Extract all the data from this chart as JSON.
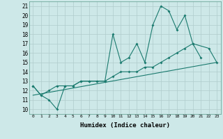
{
  "xlabel": "Humidex (Indice chaleur)",
  "bg_color": "#cde8e8",
  "line_color": "#1a7a6e",
  "grid_color": "#b0cccc",
  "xlim": [
    -0.5,
    23.5
  ],
  "ylim": [
    9.5,
    21.5
  ],
  "xticks": [
    0,
    1,
    2,
    3,
    4,
    5,
    6,
    7,
    8,
    9,
    10,
    11,
    12,
    13,
    14,
    15,
    16,
    17,
    18,
    19,
    20,
    21,
    22,
    23
  ],
  "yticks": [
    10,
    11,
    12,
    13,
    14,
    15,
    16,
    17,
    18,
    19,
    20,
    21
  ],
  "series1_x": [
    0,
    1,
    2,
    3,
    4,
    5,
    6,
    7,
    8,
    9,
    10,
    11,
    12,
    13,
    14,
    15,
    16,
    17,
    18,
    19,
    20,
    21
  ],
  "series1_y": [
    12.5,
    11.5,
    11.0,
    10.0,
    12.5,
    12.5,
    13.0,
    13.0,
    13.0,
    13.0,
    18.0,
    15.0,
    15.5,
    17.0,
    15.0,
    19.0,
    21.0,
    20.5,
    18.5,
    20.0,
    17.0,
    15.5
  ],
  "series2_x": [
    0,
    1,
    2,
    3,
    4,
    5,
    6,
    7,
    8,
    9,
    10,
    11,
    12,
    13,
    14,
    15,
    16,
    17,
    18,
    19,
    20,
    22,
    23
  ],
  "series2_y": [
    12.5,
    11.5,
    12.0,
    12.5,
    12.5,
    12.5,
    13.0,
    13.0,
    13.0,
    13.0,
    13.5,
    14.0,
    14.0,
    14.0,
    14.5,
    14.5,
    15.0,
    15.5,
    16.0,
    16.5,
    17.0,
    16.5,
    15.0
  ],
  "series3_x": [
    0,
    23
  ],
  "series3_y": [
    11.5,
    15.0
  ]
}
